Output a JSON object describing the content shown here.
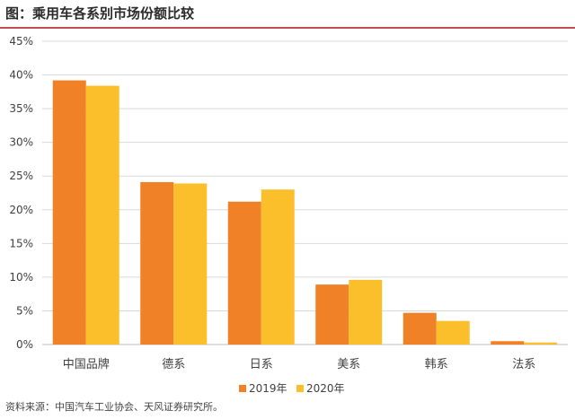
{
  "figure_title": "图：乘用车各系别市场份额比较",
  "source_note": "资料来源：中国汽车工业协会、天风证券研究所。",
  "colors": {
    "series_2019": "#f08127",
    "series_2020": "#fbbf2c",
    "title_rule": "#c0504d",
    "grid": "#d9d9d9",
    "axis_text": "#404040"
  },
  "chart_data": {
    "type": "bar",
    "title": "",
    "xlabel": "",
    "ylabel": "",
    "categories": [
      "中国品牌",
      "德系",
      "日系",
      "美系",
      "韩系",
      "法系"
    ],
    "series": [
      {
        "name": "2019年",
        "values": [
          39.2,
          24.1,
          21.2,
          8.9,
          4.7,
          0.5
        ]
      },
      {
        "name": "2020年",
        "values": [
          38.4,
          23.9,
          23.0,
          9.6,
          3.5,
          0.3
        ]
      }
    ],
    "ylim": [
      0,
      45
    ],
    "yticks": [
      "0%",
      "5%",
      "10%",
      "15%",
      "20%",
      "25%",
      "30%",
      "35%",
      "40%",
      "45%"
    ],
    "grid": true,
    "legend_position": "bottom"
  }
}
